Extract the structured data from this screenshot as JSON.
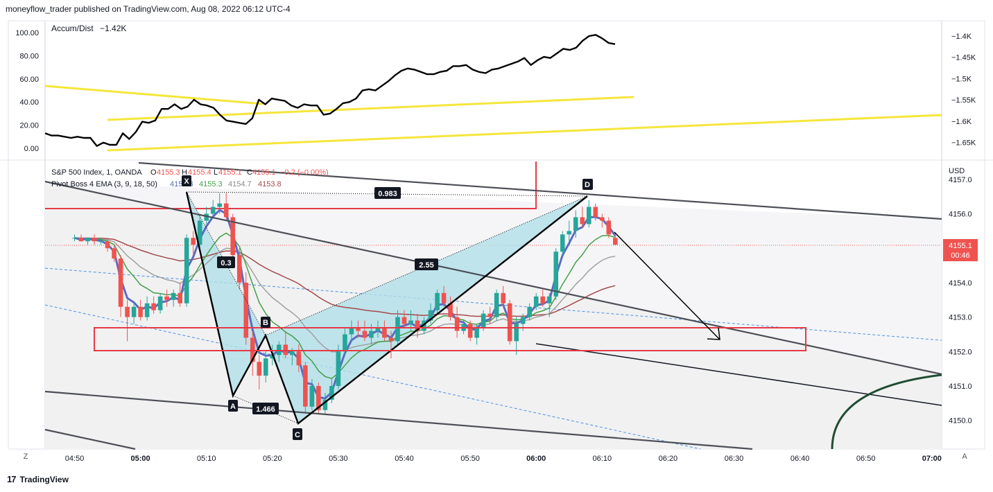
{
  "header": {
    "publisher_line": "moneyflow_trader published on TradingView.com, Aug 08, 2022 06:12 UTC-4"
  },
  "footer": {
    "logo_mark": "17",
    "brand": "TradingView"
  },
  "corner": {
    "left": "Z",
    "right": "A"
  },
  "colors": {
    "up": "#26a69a",
    "down": "#ef5350",
    "ema3": "#5b6bbf",
    "ema9": "#43a047",
    "ema18": "#a0a0a0",
    "ema50": "#a34a4a",
    "trend_yellow": "#f5e63c",
    "harmonic_fill": "#b2e0e8",
    "zone_red": "#e53945",
    "price_label_bg": "#ef5350"
  },
  "chart_data": [
    {
      "type": "line",
      "panel": "Accum/Dist",
      "legend": {
        "name": "Accum/Dist",
        "value": "−1.42K"
      },
      "left_ticks": [
        "100.00",
        "80.00",
        "60.00",
        "40.00",
        "20.00",
        "0.00"
      ],
      "right_ticks": [
        "−1.4K",
        "−1.45K",
        "−1.5K",
        "−1.55K",
        "−1.6K",
        "−1.65K"
      ],
      "ylim_left": [
        0,
        100
      ],
      "x_minutes": [
        0,
        1,
        2,
        3,
        4,
        5,
        6,
        7,
        8,
        9,
        10,
        11,
        12,
        13,
        14,
        15,
        16,
        17,
        18,
        19,
        20,
        21,
        22,
        23,
        24,
        25,
        26,
        27,
        28,
        29,
        30,
        31,
        32,
        33,
        34,
        35,
        36,
        37,
        38,
        39,
        40,
        41,
        42,
        43,
        44,
        45,
        46,
        47,
        48,
        49,
        50,
        51,
        52,
        53,
        54,
        55,
        56,
        57,
        58,
        59,
        60,
        61,
        62,
        63,
        64,
        65,
        66,
        67,
        68,
        69,
        70,
        71,
        72,
        73,
        74,
        75,
        76,
        77,
        78,
        79,
        80,
        81,
        82,
        83,
        84,
        85,
        86,
        87,
        88
      ],
      "values": [
        13,
        11,
        11,
        10,
        9,
        10,
        9,
        9,
        2,
        5,
        3,
        3,
        13,
        8,
        14,
        23,
        22,
        24,
        34,
        34,
        38,
        34,
        36,
        42,
        38,
        37,
        35,
        29,
        24,
        23,
        22,
        21,
        26,
        42,
        38,
        43,
        42,
        41,
        37,
        35,
        38,
        37,
        37,
        29,
        30,
        34,
        39,
        40,
        43,
        50,
        51,
        50,
        54,
        58,
        63,
        67,
        69,
        68,
        66,
        64,
        64,
        66,
        67,
        71,
        71,
        72,
        68,
        66,
        65,
        68,
        69,
        71,
        73,
        75,
        78,
        72,
        76,
        79,
        78,
        82,
        86,
        85,
        87,
        93,
        97,
        98,
        95,
        91,
        90
      ]
    },
    {
      "type": "candlestick",
      "panel": "S&P 500 Index, 1, OANDA",
      "legend": {
        "symbol": "S&P 500 Index, 1, OANDA",
        "o_label": "O",
        "o": "4155.3",
        "h_label": "H",
        "h": "4155.4",
        "l_label": "L",
        "l": "4155.1",
        "c_label": "C",
        "c": "4155.1",
        "change": "−0.2 (−0.00%)"
      },
      "indicator": {
        "name": "Pivot Boss 4 EMA (3, 9, 18, 50)",
        "v1": "4155.3",
        "v2": "4155.3",
        "v3": "4154.7",
        "v4": "4153.8"
      },
      "currency": "USD",
      "y_ticks": [
        "4157.0",
        "4156.0",
        "4155.0",
        "4154.0",
        "4153.0",
        "4152.0",
        "4151.0",
        "4150.0"
      ],
      "ylim": [
        4149.25,
        4157.25
      ],
      "x_ticks": [
        "04:50",
        "05:00",
        "05:10",
        "05:20",
        "05:30",
        "05:40",
        "05:50",
        "06:00",
        "06:10",
        "06:20",
        "06:30",
        "06:40",
        "06:50",
        "07:00"
      ],
      "x_ticks_bold": [
        "05:00",
        "06:00",
        "07:00"
      ],
      "last_price": "4155.1",
      "countdown": "00:46",
      "candles": [
        [
          "04:50",
          4155.3,
          4155.4,
          4155.2,
          4155.3
        ],
        [
          "04:51",
          4155.3,
          4155.4,
          4155.2,
          4155.2
        ],
        [
          "04:52",
          4155.2,
          4155.3,
          4155.1,
          4155.3
        ],
        [
          "04:53",
          4155.3,
          4155.4,
          4155.1,
          4155.2
        ],
        [
          "04:54",
          4155.2,
          4155.3,
          4155.1,
          4155.2
        ],
        [
          "04:55",
          4155.2,
          4155.3,
          4154.9,
          4155.0
        ],
        [
          "04:56",
          4155.0,
          4155.1,
          4154.6,
          4154.7
        ],
        [
          "04:57",
          4154.7,
          4154.8,
          4153.0,
          4153.3
        ],
        [
          "04:58",
          4153.3,
          4153.5,
          4152.3,
          4153.0
        ],
        [
          "04:59",
          4153.0,
          4153.4,
          4152.8,
          4153.3
        ],
        [
          "05:00",
          4153.3,
          4153.5,
          4152.9,
          4153.0
        ],
        [
          "05:01",
          4153.0,
          4153.6,
          4152.9,
          4153.4
        ],
        [
          "05:02",
          4153.4,
          4153.6,
          4153.1,
          4153.2
        ],
        [
          "05:03",
          4153.2,
          4153.7,
          4153.1,
          4153.6
        ],
        [
          "05:04",
          4153.6,
          4153.8,
          4153.3,
          4153.5
        ],
        [
          "05:05",
          4153.5,
          4153.8,
          4153.3,
          4153.7
        ],
        [
          "05:06",
          4153.7,
          4154.0,
          4153.3,
          4153.4
        ],
        [
          "05:07",
          4153.4,
          4155.4,
          4153.3,
          4155.3
        ],
        [
          "05:08",
          4155.3,
          4155.5,
          4154.8,
          4155.1
        ],
        [
          "05:09",
          4155.1,
          4156.0,
          4155.0,
          4155.8
        ],
        [
          "05:10",
          4155.8,
          4156.2,
          4155.7,
          4156.0
        ],
        [
          "05:11",
          4156.0,
          4156.4,
          4155.9,
          4156.2
        ],
        [
          "05:12",
          4156.2,
          4156.6,
          4156.0,
          4156.3
        ],
        [
          "05:13",
          4156.3,
          4156.6,
          4155.8,
          4155.9
        ],
        [
          "05:14",
          4155.9,
          4156.0,
          4154.6,
          4154.8
        ],
        [
          "05:15",
          4154.8,
          4155.0,
          4153.8,
          4154.0
        ],
        [
          "05:16",
          4154.0,
          4154.3,
          4152.2,
          4152.4
        ],
        [
          "05:17",
          4152.4,
          4152.6,
          4151.3,
          4151.7
        ],
        [
          "05:18",
          4151.7,
          4151.9,
          4150.9,
          4151.3
        ],
        [
          "05:19",
          4151.3,
          4152.0,
          4151.1,
          4151.8
        ],
        [
          "05:20",
          4151.8,
          4152.2,
          4151.6,
          4151.9
        ],
        [
          "05:21",
          4151.9,
          4152.3,
          4151.7,
          4152.2
        ],
        [
          "05:22",
          4152.2,
          4152.6,
          4151.8,
          4151.9
        ],
        [
          "05:23",
          4151.9,
          4152.1,
          4151.6,
          4152.0
        ],
        [
          "05:24",
          4152.0,
          4152.2,
          4151.4,
          4151.6
        ],
        [
          "05:25",
          4151.6,
          4151.7,
          4150.2,
          4150.4
        ],
        [
          "05:26",
          4150.4,
          4151.2,
          4150.3,
          4151.0
        ],
        [
          "05:27",
          4151.0,
          4151.1,
          4150.2,
          4150.3
        ],
        [
          "05:28",
          4150.3,
          4150.8,
          4150.2,
          4150.6
        ],
        [
          "05:29",
          4150.6,
          4151.2,
          4150.5,
          4151.0
        ],
        [
          "05:30",
          4151.0,
          4152.2,
          4150.9,
          4152.0
        ],
        [
          "05:31",
          4152.0,
          4152.7,
          4151.9,
          4152.5
        ],
        [
          "05:32",
          4152.5,
          4152.9,
          4152.3,
          4152.7
        ],
        [
          "05:33",
          4152.7,
          4152.9,
          4152.4,
          4152.6
        ],
        [
          "05:34",
          4152.6,
          4152.9,
          4152.3,
          4152.4
        ],
        [
          "05:35",
          4152.4,
          4152.8,
          4152.2,
          4152.6
        ],
        [
          "05:36",
          4152.6,
          4152.9,
          4152.4,
          4152.7
        ],
        [
          "05:37",
          4152.7,
          4152.9,
          4152.3,
          4152.4
        ],
        [
          "05:38",
          4152.4,
          4152.6,
          4151.8,
          4152.3
        ],
        [
          "05:39",
          4152.3,
          4153.2,
          4152.2,
          4153.0
        ],
        [
          "05:40",
          4153.0,
          4153.2,
          4152.7,
          4152.8
        ],
        [
          "05:41",
          4152.8,
          4153.2,
          4152.6,
          4152.9
        ],
        [
          "05:42",
          4152.9,
          4153.1,
          4152.4,
          4152.6
        ],
        [
          "05:43",
          4152.6,
          4153.0,
          4152.5,
          4152.9
        ],
        [
          "05:44",
          4152.9,
          4153.4,
          4152.8,
          4153.2
        ],
        [
          "05:45",
          4153.2,
          4153.8,
          4153.1,
          4153.7
        ],
        [
          "05:46",
          4153.7,
          4153.9,
          4153.3,
          4153.4
        ],
        [
          "05:47",
          4153.4,
          4153.6,
          4152.9,
          4153.0
        ],
        [
          "05:48",
          4153.0,
          4153.3,
          4152.4,
          4152.6
        ],
        [
          "05:49",
          4152.6,
          4152.9,
          4152.5,
          4152.8
        ],
        [
          "05:50",
          4152.8,
          4152.9,
          4152.3,
          4152.4
        ],
        [
          "05:51",
          4152.4,
          4152.8,
          4152.2,
          4152.7
        ],
        [
          "05:52",
          4152.7,
          4153.2,
          4152.6,
          4153.1
        ],
        [
          "05:53",
          4153.1,
          4153.3,
          4152.8,
          4153.0
        ],
        [
          "05:54",
          4153.0,
          4153.8,
          4152.9,
          4153.7
        ],
        [
          "05:55",
          4153.7,
          4153.9,
          4153.3,
          4153.4
        ],
        [
          "05:56",
          4153.4,
          4153.5,
          4152.2,
          4152.3
        ],
        [
          "05:57",
          4152.3,
          4153.0,
          4151.9,
          4152.8
        ],
        [
          "05:58",
          4152.8,
          4153.1,
          4152.6,
          4153.0
        ],
        [
          "05:59",
          4153.0,
          4153.4,
          4152.9,
          4153.3
        ],
        [
          "06:00",
          4153.3,
          4153.7,
          4153.2,
          4153.6
        ],
        [
          "06:01",
          4153.6,
          4153.8,
          4153.3,
          4153.4
        ],
        [
          "06:02",
          4153.4,
          4153.7,
          4153.0,
          4153.6
        ],
        [
          "06:03",
          4153.6,
          4155.0,
          4153.5,
          4154.9
        ],
        [
          "06:04",
          4154.9,
          4155.5,
          4154.8,
          4155.4
        ],
        [
          "06:05",
          4155.4,
          4155.8,
          4155.2,
          4155.5
        ],
        [
          "06:06",
          4155.5,
          4156.1,
          4155.3,
          4155.9
        ],
        [
          "06:07",
          4155.9,
          4156.2,
          4155.6,
          4155.7
        ],
        [
          "06:08",
          4155.7,
          4156.4,
          4155.6,
          4156.2
        ],
        [
          "06:09",
          4156.2,
          4156.3,
          4155.8,
          4155.9
        ],
        [
          "06:10",
          4155.9,
          4156.0,
          4155.6,
          4155.8
        ],
        [
          "06:11",
          4155.8,
          4155.9,
          4155.3,
          4155.4
        ],
        [
          "06:12",
          4155.3,
          4155.4,
          4155.1,
          4155.1
        ]
      ],
      "annotations": {
        "points": [
          "X",
          "A",
          "B",
          "C",
          "D"
        ],
        "ratios": [
          "0.983",
          "0.3",
          "2.55",
          "1.466"
        ]
      }
    }
  ]
}
